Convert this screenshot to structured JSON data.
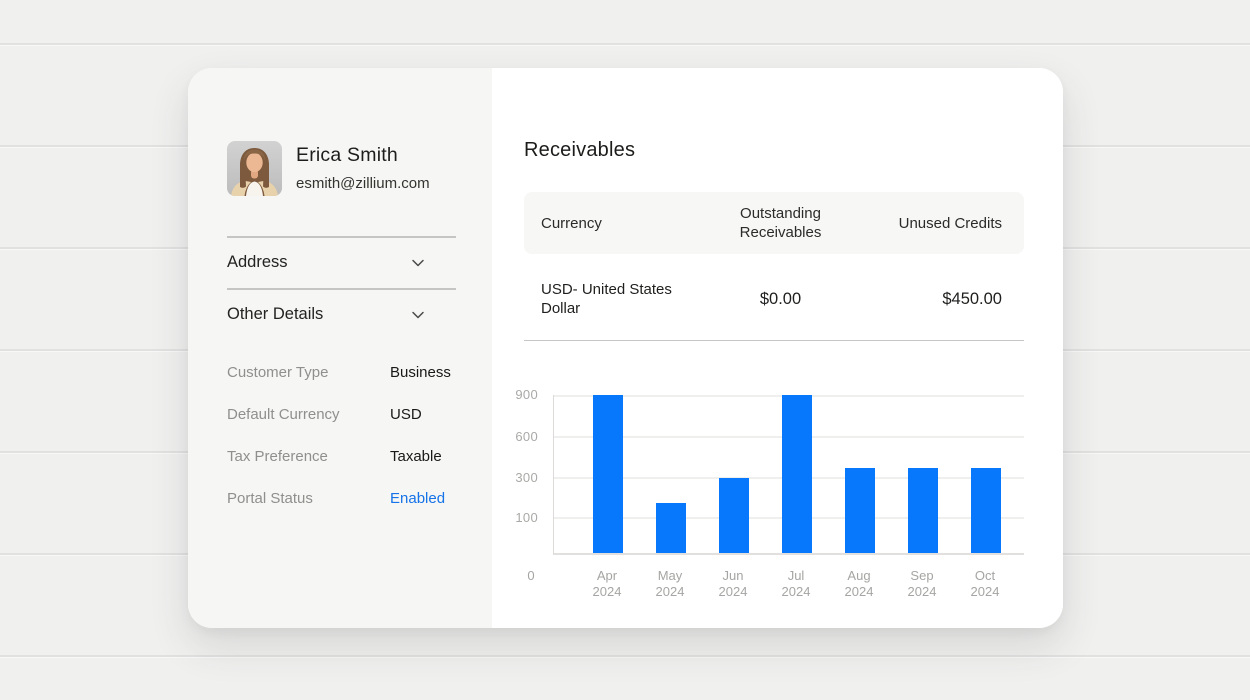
{
  "profile": {
    "name": "Erica Smith",
    "email": "esmith@zillium.com",
    "avatar": "woman-portrait-photo"
  },
  "sections": {
    "address": "Address",
    "other_details": "Other Details"
  },
  "details": [
    {
      "label": "Customer Type",
      "value": "Business"
    },
    {
      "label": "Default Currency",
      "value": "USD"
    },
    {
      "label": "Tax Preference",
      "value": "Taxable"
    },
    {
      "label": "Portal Status",
      "value": "Enabled"
    }
  ],
  "receivables": {
    "title": "Receivables",
    "table": {
      "col_currency": "Currency",
      "col_outstanding": "Outstanding Receivables",
      "col_unused": "Unused Credits",
      "row": {
        "currency": "USD- United States Dollar",
        "outstanding": "$0.00",
        "unused": "$450.00"
      }
    }
  },
  "chart_data": {
    "type": "bar",
    "categories": [
      "Apr 2024",
      "May 2024",
      "Jun 2024",
      "Jul 2024",
      "Aug 2024",
      "Sep 2024",
      "Oct 2024"
    ],
    "values": [
      900,
      175,
      300,
      900,
      375,
      375,
      375
    ],
    "title": "",
    "xlabel": "",
    "ylabel": "",
    "y_ticks": [
      900,
      600,
      300,
      100
    ],
    "origin_label": "0",
    "ylim": [
      0,
      900
    ],
    "grid": true,
    "legend": false,
    "bar_color": "#0777fb"
  },
  "colors": {
    "accent_blue": "#0777fb",
    "portal_enabled": "#1673e8",
    "panel_bg": "#f6f6f4",
    "page_bg": "#f0f0ef"
  }
}
